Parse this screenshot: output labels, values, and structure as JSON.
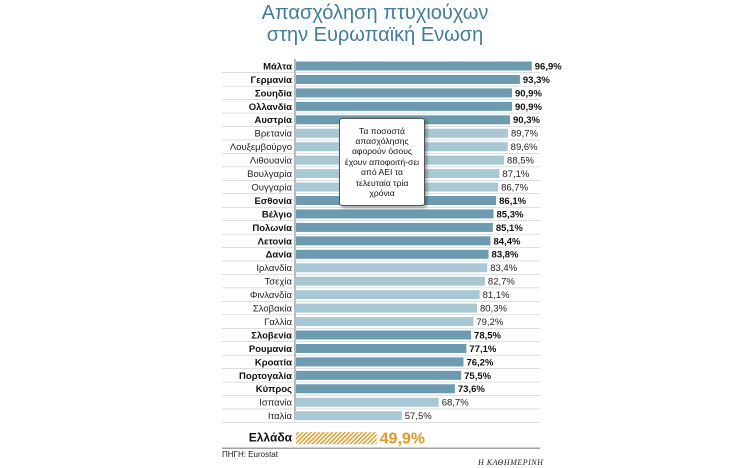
{
  "header": {
    "title_line1": "Απασχόληση πτυχιούχων",
    "title_line2": "στην Ευρωπαϊκή Ενωση"
  },
  "note": "Τα ποσοστά απασχόλησης αφορούν όσους έχουν αποφοιτή-σει από ΑΕΙ τα τελευταία τρία χρόνια",
  "source": "ΠΗΓΗ: Eurostat",
  "brand": "Η ΚΑΘΗΜΕΡΙΝΗ",
  "colors": {
    "title": "#3f7f9d",
    "bar_dark": "#6a9bb0",
    "bar_light": "#a9c8d6",
    "highlight": "#e8961e"
  },
  "chart_data": {
    "type": "bar",
    "orientation": "horizontal",
    "title": "Απασχόληση πτυχιούχων στην Ευρωπαϊκή Ενωση",
    "value_unit": "%",
    "xlim": [
      0,
      100
    ],
    "grid": false,
    "categories": [
      "Μάλτα",
      "Γερμανία",
      "Σουηδία",
      "Ολλανδία",
      "Αυστρία",
      "Βρετανία",
      "Λουξεμβούργο",
      "Λιθουανία",
      "Βουλγαρία",
      "Ουγγαρία",
      "Εσθονία",
      "Βέλγιο",
      "Πολωνία",
      "Λετονία",
      "Δανία",
      "Ιρλανδία",
      "Τσεχία",
      "Φινλανδία",
      "Σλοβακία",
      "Γαλλία",
      "Σλοβενία",
      "Ρουμανία",
      "Κροατία",
      "Πορτογαλία",
      "Κύπρος",
      "Ισπανία",
      "Ιταλία",
      "Ελλάδα"
    ],
    "values": [
      96.9,
      93.3,
      90.9,
      90.9,
      90.3,
      89.7,
      89.6,
      88.5,
      87.1,
      86.7,
      86.1,
      85.3,
      85.1,
      84.4,
      83.8,
      83.4,
      82.7,
      81.1,
      80.3,
      79.2,
      78.5,
      77.1,
      76.2,
      75.5,
      73.6,
      68.7,
      57.5,
      49.9
    ],
    "value_labels": [
      "96,9%",
      "93,3%",
      "90,9%",
      "90,9%",
      "90,3%",
      "89,7%",
      "89,6%",
      "88,5%",
      "87,1%",
      "86,7%",
      "86,1%",
      "85,3%",
      "85,1%",
      "84,4%",
      "83,8%",
      "83,4%",
      "82,7%",
      "81,1%",
      "80,3%",
      "79,2%",
      "78,5%",
      "77,1%",
      "76,2%",
      "75,5%",
      "73,6%",
      "68,7%",
      "57,5%",
      "49,9%"
    ],
    "styles": [
      "dark",
      "dark",
      "dark",
      "dark",
      "dark",
      "light",
      "light",
      "light",
      "light",
      "light",
      "dark",
      "dark",
      "dark",
      "dark",
      "dark",
      "light",
      "light",
      "light",
      "light",
      "light",
      "dark",
      "dark",
      "dark",
      "dark",
      "dark",
      "light",
      "light",
      "highlight"
    ]
  }
}
